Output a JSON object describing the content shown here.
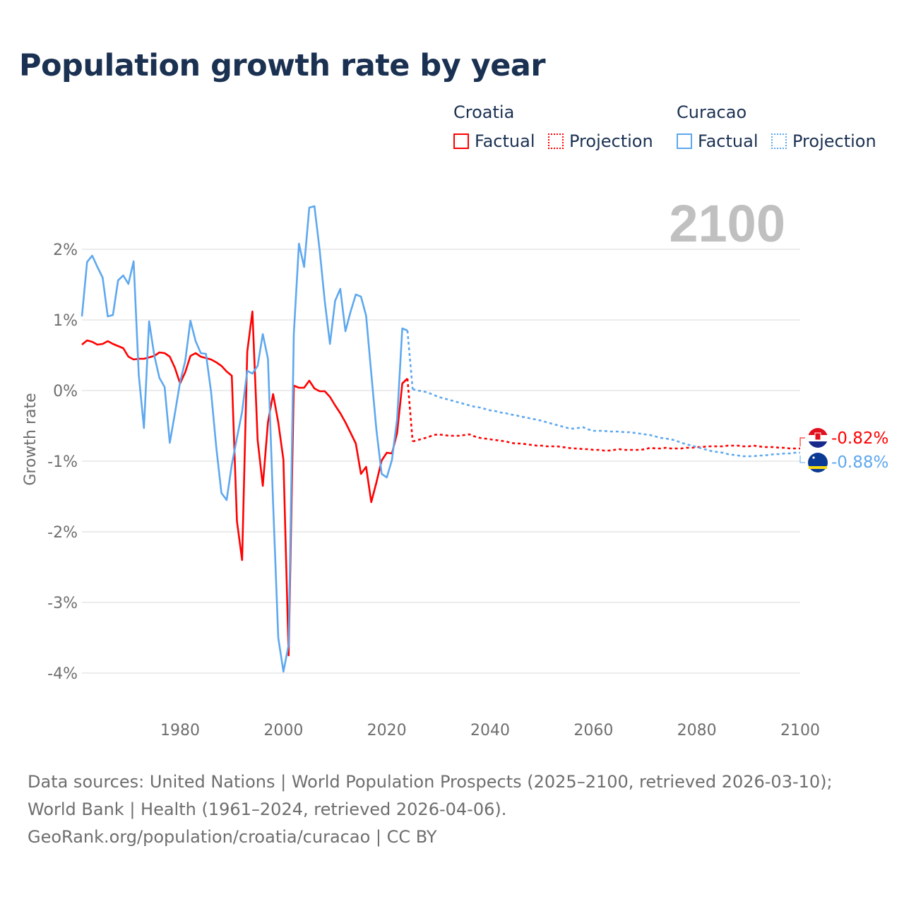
{
  "title": "Population growth rate by year",
  "legend": {
    "groups": [
      {
        "country": "Croatia",
        "factual": "Factual",
        "projection": "Projection",
        "color": "#ff0000"
      },
      {
        "country": "Curacao",
        "factual": "Factual",
        "projection": "Projection",
        "color": "#5ea8ef"
      }
    ]
  },
  "year_overlay": "2100",
  "end_labels": {
    "croatia": "-0.82%",
    "curacao": "-0.88%"
  },
  "source": {
    "line1": "Data sources: United Nations | World Population Prospects (2025–2100, retrieved 2026-03-10); World Bank | Health (1961–2024, retrieved 2026-04-06).",
    "line2": "GeoRank.org/population/croatia/curacao | CC BY"
  },
  "chart_data": {
    "type": "line",
    "title": "Population growth rate by year",
    "xlabel": "",
    "ylabel": "Growth rate",
    "xlim": [
      1961,
      2100
    ],
    "ylim": [
      -4.5,
      2.8
    ],
    "xticks": [
      1980,
      2000,
      2020,
      2040,
      2060,
      2080,
      2100
    ],
    "xtick_labels": [
      "1980",
      "2000",
      "2020",
      "2040",
      "2060",
      "2080",
      "2100"
    ],
    "yticks": [
      2,
      1,
      0,
      -1,
      -2,
      -3,
      -4
    ],
    "ytick_labels": [
      "2%",
      "1%",
      "0%",
      "-1%",
      "-2%",
      "-3%",
      "-4%"
    ],
    "grid": true,
    "legend_position": "top-right",
    "series": [
      {
        "name": "Croatia Factual",
        "color": "#ff0000",
        "style": "solid",
        "start_year": 1961,
        "values": [
          0.65,
          0.71,
          0.69,
          0.65,
          0.66,
          0.7,
          0.66,
          0.63,
          0.6,
          0.48,
          0.44,
          0.45,
          0.45,
          0.47,
          0.49,
          0.54,
          0.53,
          0.48,
          0.32,
          0.1,
          0.26,
          0.49,
          0.53,
          0.48,
          0.46,
          0.44,
          0.4,
          0.35,
          0.27,
          0.21,
          -1.85,
          -2.4,
          0.55,
          1.12,
          -0.7,
          -1.35,
          -0.45,
          -0.05,
          -0.45,
          -0.98,
          -3.75,
          0.07,
          0.04,
          0.04,
          0.14,
          0.03,
          -0.01,
          -0.01,
          -0.09,
          -0.21,
          -0.32,
          -0.45,
          -0.6,
          -0.75,
          -1.18,
          -1.08,
          -1.58,
          -1.3,
          -0.99,
          -0.88,
          -0.89,
          -0.6,
          0.1,
          0.17
        ]
      },
      {
        "name": "Croatia Projection",
        "color": "#ff0000",
        "style": "dotted",
        "start_year": 2025,
        "values": [
          -0.72,
          -0.7,
          -0.68,
          -0.66,
          -0.63,
          -0.62,
          -0.63,
          -0.64,
          -0.64,
          -0.64,
          -0.63,
          -0.62,
          -0.65,
          -0.67,
          -0.68,
          -0.69,
          -0.7,
          -0.71,
          -0.72,
          -0.74,
          -0.75,
          -0.75,
          -0.76,
          -0.77,
          -0.78,
          -0.78,
          -0.79,
          -0.79,
          -0.79,
          -0.8,
          -0.81,
          -0.82,
          -0.82,
          -0.83,
          -0.83,
          -0.84,
          -0.84,
          -0.85,
          -0.85,
          -0.84,
          -0.83,
          -0.84,
          -0.84,
          -0.84,
          -0.84,
          -0.83,
          -0.81,
          -0.82,
          -0.82,
          -0.81,
          -0.82,
          -0.82,
          -0.82,
          -0.81,
          -0.81,
          -0.8,
          -0.8,
          -0.79,
          -0.79,
          -0.79,
          -0.79,
          -0.78,
          -0.78,
          -0.78,
          -0.79,
          -0.79,
          -0.78,
          -0.79,
          -0.8,
          -0.8,
          -0.8,
          -0.81,
          -0.81,
          -0.82,
          -0.82,
          -0.82
        ]
      },
      {
        "name": "Curacao Factual",
        "color": "#5ea8ef",
        "style": "solid",
        "start_year": 1961,
        "values": [
          1.05,
          1.82,
          1.91,
          1.75,
          1.6,
          1.05,
          1.07,
          1.56,
          1.63,
          1.51,
          1.83,
          0.22,
          -0.53,
          0.98,
          0.5,
          0.18,
          0.05,
          -0.74,
          -0.32,
          0.12,
          0.42,
          0.99,
          0.7,
          0.53,
          0.52,
          -0.02,
          -0.8,
          -1.45,
          -1.55,
          -1.05,
          -0.67,
          -0.3,
          0.28,
          0.24,
          0.35,
          0.8,
          0.45,
          -1.6,
          -3.5,
          -3.98,
          -3.6,
          0.8,
          2.08,
          1.75,
          2.59,
          2.61,
          1.99,
          1.26,
          0.66,
          1.27,
          1.44,
          0.84,
          1.12,
          1.36,
          1.33,
          1.06,
          0.24,
          -0.56,
          -1.18,
          -1.23,
          -0.98,
          -0.4,
          0.88,
          0.85
        ]
      },
      {
        "name": "Curacao Projection",
        "color": "#5ea8ef",
        "style": "dotted",
        "start_year": 2025,
        "values": [
          0.02,
          0.0,
          -0.01,
          -0.03,
          -0.06,
          -0.09,
          -0.11,
          -0.13,
          -0.15,
          -0.17,
          -0.19,
          -0.21,
          -0.23,
          -0.24,
          -0.26,
          -0.28,
          -0.29,
          -0.31,
          -0.32,
          -0.34,
          -0.35,
          -0.37,
          -0.38,
          -0.4,
          -0.41,
          -0.43,
          -0.45,
          -0.47,
          -0.49,
          -0.51,
          -0.53,
          -0.54,
          -0.53,
          -0.52,
          -0.55,
          -0.57,
          -0.57,
          -0.57,
          -0.58,
          -0.58,
          -0.58,
          -0.59,
          -0.59,
          -0.6,
          -0.61,
          -0.62,
          -0.63,
          -0.65,
          -0.67,
          -0.68,
          -0.69,
          -0.71,
          -0.74,
          -0.76,
          -0.78,
          -0.8,
          -0.82,
          -0.84,
          -0.86,
          -0.87,
          -0.88,
          -0.9,
          -0.91,
          -0.92,
          -0.93,
          -0.93,
          -0.93,
          -0.92,
          -0.92,
          -0.91,
          -0.9,
          -0.9,
          -0.89,
          -0.89,
          -0.88,
          -0.88
        ]
      }
    ]
  }
}
